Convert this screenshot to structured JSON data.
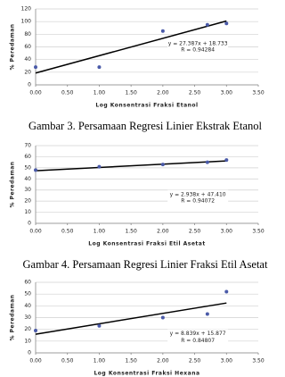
{
  "chart_data": [
    {
      "type": "scatter",
      "caption": "Gambar 3. Persamaan Regresi Linier Ekstrak Etanol",
      "x_label": "Log Konsentrasi Fraksi Etanol",
      "y_label": "% Peredaman",
      "x": [
        0,
        1,
        2,
        2.7,
        3
      ],
      "values": [
        28,
        28,
        85,
        95,
        97
      ],
      "color": "#4a5aa8",
      "trendline": {
        "slope": 27.387,
        "intercept": 18.733,
        "label": "y = 27.387x + 18.733",
        "r_label": "R = 0.94284"
      },
      "xlim": [
        0,
        3.5
      ],
      "xticks": [
        {
          "value": 0,
          "label": "0.00"
        },
        {
          "value": 0.5,
          "label": "0.50"
        },
        {
          "value": 1,
          "label": "1.00"
        },
        {
          "value": 1.5,
          "label": "1.50"
        },
        {
          "value": 2,
          "label": "2.00"
        },
        {
          "value": 2.5,
          "label": "2.50"
        },
        {
          "value": 3,
          "label": "3.00"
        },
        {
          "value": 3.5,
          "label": "3.50"
        }
      ],
      "ylim": [
        0,
        120
      ],
      "yticks": [
        0,
        20,
        40,
        60,
        80,
        100,
        120
      ],
      "grid": true
    },
    {
      "type": "scatter",
      "caption": "Gambar 4.  Persamaan Regresi Linier Fraksi Etil Asetat",
      "x_label": "Log Konsentrasi Fraksi Etil Asetat",
      "y_label": "% Peredaman",
      "x": [
        0,
        1,
        2,
        2.7,
        3
      ],
      "values": [
        48,
        51,
        53,
        55,
        57
      ],
      "color": "#4a5aa8",
      "trendline": {
        "slope": 2.938,
        "intercept": 47.41,
        "label": "y = 2.938x + 47.410",
        "r_label": "R = 0.94072"
      },
      "xlim": [
        0,
        3.5
      ],
      "xticks": [
        {
          "value": 0,
          "label": "0.00"
        },
        {
          "value": 0.5,
          "label": "0.50"
        },
        {
          "value": 1,
          "label": "1.00"
        },
        {
          "value": 1.5,
          "label": "1.50"
        },
        {
          "value": 2,
          "label": "2.00"
        },
        {
          "value": 2.5,
          "label": "2.50"
        },
        {
          "value": 3,
          "label": "3.00"
        },
        {
          "value": 3.5,
          "label": "3.50"
        }
      ],
      "ylim": [
        0,
        70
      ],
      "yticks": [
        0,
        10,
        20,
        30,
        40,
        50,
        60,
        70
      ],
      "grid": true
    },
    {
      "type": "scatter",
      "x_label": "Log Konsentrasi Fraksi Hexana",
      "y_label": "% Peredaman",
      "x": [
        0,
        1,
        2,
        2.7,
        3
      ],
      "values": [
        19,
        23,
        30,
        33,
        52
      ],
      "color": "#4a5aa8",
      "trendline": {
        "slope": 8.839,
        "intercept": 15.877,
        "label": "y = 8.839x + 15.877",
        "r_label": "R = 0.84807"
      },
      "xlim": [
        0,
        3.5
      ],
      "xticks": [
        {
          "value": 0,
          "label": "0.00"
        },
        {
          "value": 0.5,
          "label": "0.50"
        },
        {
          "value": 1,
          "label": "1.00"
        },
        {
          "value": 1.5,
          "label": "1.50"
        },
        {
          "value": 2,
          "label": "2.00"
        },
        {
          "value": 2.5,
          "label": "2.50"
        },
        {
          "value": 3,
          "label": "3.00"
        },
        {
          "value": 3.5,
          "label": "3.50"
        }
      ],
      "ylim": [
        0,
        60
      ],
      "yticks": [
        0,
        10,
        20,
        30,
        40,
        50,
        60
      ],
      "grid": true
    }
  ]
}
